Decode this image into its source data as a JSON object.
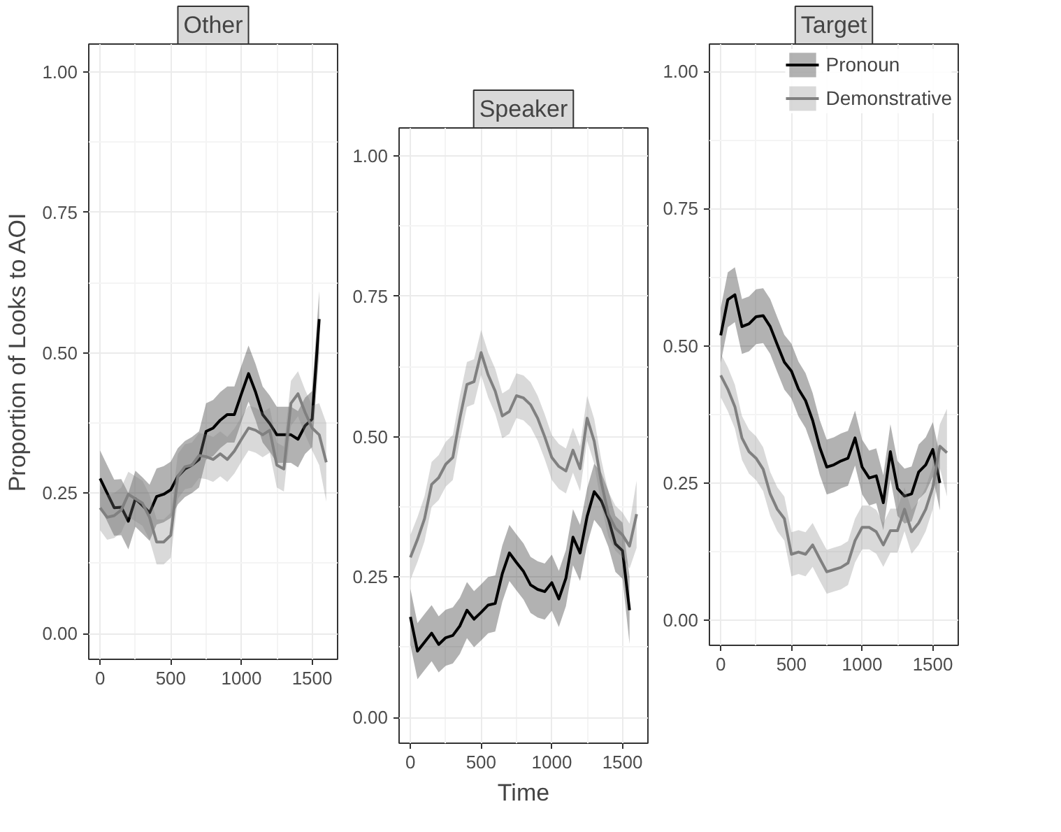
{
  "chart_data": [
    {
      "type": "line",
      "title": "Other",
      "ylabel": "Proportion of Looks to AOI",
      "xlim": [
        -80,
        1680
      ],
      "ylim": [
        -0.046,
        1.05
      ],
      "xticks": [
        0,
        500,
        1000,
        1500
      ],
      "yticks": [
        {
          "value": 0,
          "label": "0.00"
        },
        {
          "value": 0.25,
          "label": "0.25"
        },
        {
          "value": 0.5,
          "label": "0.50"
        },
        {
          "value": 0.75,
          "label": "0.75"
        },
        {
          "value": 1,
          "label": "1.00"
        }
      ],
      "grid": true,
      "series": [
        {
          "color": "#000000",
          "x": [
            0,
            50,
            100,
            150,
            200,
            250,
            300,
            350,
            400,
            450,
            500,
            550,
            600,
            650,
            700,
            750,
            800,
            850,
            900,
            950,
            1000,
            1050,
            1100,
            1150,
            1200,
            1250,
            1300,
            1350,
            1400,
            1450,
            1500,
            1550
          ],
          "values": [
            0.276,
            0.25,
            0.224,
            0.225,
            0.2,
            0.24,
            0.228,
            0.215,
            0.244,
            0.248,
            0.256,
            0.28,
            0.293,
            0.3,
            0.31,
            0.36,
            0.366,
            0.38,
            0.39,
            0.39,
            0.427,
            0.463,
            0.43,
            0.39,
            0.374,
            0.354,
            0.354,
            0.354,
            0.346,
            0.37,
            0.382,
            0.56
          ],
          "lower": [
            0.226,
            0.2,
            0.174,
            0.175,
            0.15,
            0.19,
            0.178,
            0.165,
            0.194,
            0.198,
            0.206,
            0.23,
            0.243,
            0.25,
            0.26,
            0.31,
            0.316,
            0.33,
            0.34,
            0.34,
            0.377,
            0.413,
            0.38,
            0.34,
            0.324,
            0.304,
            0.304,
            0.304,
            0.296,
            0.32,
            0.332,
            0.5
          ],
          "upper": [
            0.326,
            0.3,
            0.274,
            0.275,
            0.25,
            0.29,
            0.278,
            0.265,
            0.294,
            0.298,
            0.306,
            0.33,
            0.343,
            0.35,
            0.36,
            0.41,
            0.416,
            0.43,
            0.44,
            0.44,
            0.477,
            0.513,
            0.48,
            0.44,
            0.424,
            0.404,
            0.404,
            0.404,
            0.396,
            0.42,
            0.432,
            0.61
          ]
        },
        {
          "color": "#808080",
          "x": [
            0,
            50,
            100,
            150,
            200,
            250,
            300,
            350,
            400,
            450,
            500,
            550,
            600,
            650,
            700,
            750,
            800,
            850,
            900,
            950,
            1000,
            1050,
            1100,
            1150,
            1200,
            1250,
            1300,
            1350,
            1400,
            1450,
            1500,
            1550,
            1600
          ],
          "values": [
            0.224,
            0.207,
            0.21,
            0.22,
            0.248,
            0.24,
            0.232,
            0.207,
            0.163,
            0.163,
            0.175,
            0.28,
            0.297,
            0.3,
            0.317,
            0.315,
            0.31,
            0.32,
            0.31,
            0.325,
            0.346,
            0.366,
            0.362,
            0.354,
            0.362,
            0.3,
            0.293,
            0.41,
            0.427,
            0.394,
            0.366,
            0.354,
            0.305
          ],
          "lower": [
            0.184,
            0.167,
            0.17,
            0.18,
            0.208,
            0.2,
            0.192,
            0.167,
            0.123,
            0.123,
            0.135,
            0.24,
            0.257,
            0.26,
            0.277,
            0.275,
            0.27,
            0.28,
            0.27,
            0.285,
            0.306,
            0.326,
            0.322,
            0.314,
            0.322,
            0.26,
            0.253,
            0.37,
            0.387,
            0.354,
            0.326,
            0.3,
            0.235
          ],
          "upper": [
            0.264,
            0.247,
            0.25,
            0.26,
            0.288,
            0.28,
            0.272,
            0.247,
            0.203,
            0.203,
            0.215,
            0.32,
            0.337,
            0.34,
            0.357,
            0.355,
            0.35,
            0.36,
            0.35,
            0.365,
            0.386,
            0.406,
            0.402,
            0.394,
            0.402,
            0.34,
            0.333,
            0.45,
            0.467,
            0.434,
            0.406,
            0.41,
            0.375
          ]
        }
      ]
    },
    {
      "type": "line",
      "title": "Speaker",
      "xlabel": "Time",
      "xlim": [
        -80,
        1680
      ],
      "ylim": [
        -0.046,
        1.05
      ],
      "xticks": [
        0,
        500,
        1000,
        1500
      ],
      "yticks": [
        {
          "value": 0,
          "label": "0.00"
        },
        {
          "value": 0.25,
          "label": "0.25"
        },
        {
          "value": 0.5,
          "label": "0.50"
        },
        {
          "value": 0.75,
          "label": "0.75"
        },
        {
          "value": 1,
          "label": "1.00"
        }
      ],
      "grid": true,
      "series": [
        {
          "color": "#000000",
          "x": [
            0,
            50,
            100,
            150,
            200,
            250,
            300,
            350,
            400,
            450,
            500,
            550,
            600,
            650,
            700,
            750,
            800,
            850,
            900,
            950,
            1000,
            1050,
            1100,
            1150,
            1200,
            1250,
            1300,
            1350,
            1400,
            1450,
            1500,
            1550
          ],
          "values": [
            0.179,
            0.118,
            0.134,
            0.15,
            0.13,
            0.142,
            0.146,
            0.163,
            0.191,
            0.175,
            0.187,
            0.2,
            0.203,
            0.256,
            0.293,
            0.276,
            0.26,
            0.236,
            0.228,
            0.224,
            0.24,
            0.211,
            0.248,
            0.321,
            0.293,
            0.358,
            0.402,
            0.386,
            0.354,
            0.309,
            0.297,
            0.191
          ],
          "lower": [
            0.129,
            0.068,
            0.084,
            0.1,
            0.08,
            0.092,
            0.096,
            0.113,
            0.141,
            0.125,
            0.137,
            0.15,
            0.153,
            0.206,
            0.243,
            0.226,
            0.21,
            0.186,
            0.178,
            0.174,
            0.19,
            0.161,
            0.198,
            0.271,
            0.243,
            0.308,
            0.352,
            0.336,
            0.304,
            0.259,
            0.247,
            0.131
          ],
          "upper": [
            0.229,
            0.168,
            0.184,
            0.2,
            0.18,
            0.192,
            0.196,
            0.213,
            0.241,
            0.225,
            0.237,
            0.25,
            0.253,
            0.306,
            0.343,
            0.326,
            0.31,
            0.286,
            0.278,
            0.274,
            0.29,
            0.261,
            0.298,
            0.371,
            0.343,
            0.408,
            0.452,
            0.436,
            0.404,
            0.359,
            0.347,
            0.251
          ]
        },
        {
          "color": "#808080",
          "x": [
            0,
            50,
            100,
            150,
            200,
            250,
            300,
            350,
            400,
            450,
            500,
            550,
            600,
            650,
            700,
            750,
            800,
            850,
            900,
            950,
            1000,
            1050,
            1100,
            1150,
            1200,
            1250,
            1300,
            1350,
            1400,
            1450,
            1500,
            1550,
            1600
          ],
          "values": [
            0.285,
            0.317,
            0.354,
            0.415,
            0.427,
            0.451,
            0.463,
            0.533,
            0.593,
            0.598,
            0.65,
            0.61,
            0.581,
            0.537,
            0.545,
            0.573,
            0.569,
            0.557,
            0.533,
            0.5,
            0.463,
            0.447,
            0.439,
            0.476,
            0.443,
            0.533,
            0.492,
            0.419,
            0.362,
            0.337,
            0.325,
            0.305,
            0.362
          ],
          "lower": [
            0.245,
            0.277,
            0.314,
            0.375,
            0.387,
            0.411,
            0.423,
            0.493,
            0.553,
            0.558,
            0.61,
            0.57,
            0.541,
            0.497,
            0.505,
            0.533,
            0.529,
            0.517,
            0.493,
            0.46,
            0.423,
            0.407,
            0.399,
            0.436,
            0.403,
            0.493,
            0.452,
            0.379,
            0.322,
            0.297,
            0.285,
            0.265,
            0.302
          ],
          "upper": [
            0.325,
            0.357,
            0.394,
            0.455,
            0.467,
            0.491,
            0.503,
            0.573,
            0.633,
            0.638,
            0.69,
            0.65,
            0.621,
            0.577,
            0.585,
            0.613,
            0.609,
            0.597,
            0.573,
            0.54,
            0.503,
            0.487,
            0.479,
            0.516,
            0.483,
            0.573,
            0.532,
            0.459,
            0.402,
            0.377,
            0.365,
            0.345,
            0.422
          ]
        }
      ]
    },
    {
      "type": "line",
      "title": "Target",
      "xlim": [
        -80,
        1680
      ],
      "ylim": [
        -0.046,
        1.05
      ],
      "xticks": [
        0,
        500,
        1000,
        1500
      ],
      "yticks": [
        {
          "value": 0,
          "label": "0.00"
        },
        {
          "value": 0.25,
          "label": "0.25"
        },
        {
          "value": 0.5,
          "label": "0.50"
        },
        {
          "value": 0.75,
          "label": "0.75"
        },
        {
          "value": 1,
          "label": "1.00"
        }
      ],
      "grid": true,
      "legend": "top right",
      "series": [
        {
          "name": "Pronoun",
          "color": "#000000",
          "x": [
            0,
            50,
            100,
            150,
            200,
            250,
            300,
            350,
            400,
            450,
            500,
            550,
            600,
            650,
            700,
            750,
            800,
            850,
            900,
            950,
            1000,
            1050,
            1100,
            1150,
            1200,
            1250,
            1300,
            1350,
            1400,
            1450,
            1500,
            1550
          ],
          "values": [
            0.519,
            0.584,
            0.593,
            0.535,
            0.54,
            0.553,
            0.555,
            0.535,
            0.502,
            0.47,
            0.454,
            0.421,
            0.4,
            0.364,
            0.315,
            0.279,
            0.283,
            0.29,
            0.295,
            0.332,
            0.279,
            0.259,
            0.263,
            0.214,
            0.307,
            0.24,
            0.226,
            0.23,
            0.27,
            0.283,
            0.311,
            0.25
          ],
          "lower": [
            0.469,
            0.534,
            0.543,
            0.485,
            0.49,
            0.503,
            0.505,
            0.485,
            0.452,
            0.42,
            0.404,
            0.371,
            0.35,
            0.314,
            0.265,
            0.229,
            0.233,
            0.24,
            0.245,
            0.282,
            0.229,
            0.209,
            0.213,
            0.164,
            0.257,
            0.19,
            0.176,
            0.18,
            0.22,
            0.233,
            0.261,
            0.2
          ],
          "upper": [
            0.569,
            0.634,
            0.643,
            0.585,
            0.59,
            0.603,
            0.605,
            0.585,
            0.552,
            0.52,
            0.504,
            0.471,
            0.45,
            0.414,
            0.365,
            0.329,
            0.333,
            0.34,
            0.345,
            0.382,
            0.329,
            0.309,
            0.313,
            0.264,
            0.357,
            0.29,
            0.276,
            0.28,
            0.32,
            0.333,
            0.361,
            0.3
          ]
        },
        {
          "name": "Demonstrative",
          "color": "#808080",
          "x": [
            0,
            50,
            100,
            150,
            200,
            250,
            300,
            350,
            400,
            450,
            500,
            550,
            600,
            650,
            700,
            750,
            800,
            850,
            900,
            950,
            1000,
            1050,
            1100,
            1150,
            1200,
            1250,
            1300,
            1350,
            1400,
            1450,
            1500,
            1550,
            1600
          ],
          "values": [
            0.446,
            0.421,
            0.389,
            0.332,
            0.307,
            0.295,
            0.275,
            0.23,
            0.202,
            0.185,
            0.12,
            0.124,
            0.12,
            0.137,
            0.112,
            0.088,
            0.092,
            0.096,
            0.104,
            0.145,
            0.169,
            0.169,
            0.161,
            0.137,
            0.163,
            0.163,
            0.202,
            0.161,
            0.177,
            0.202,
            0.242,
            0.317,
            0.305
          ],
          "lower": [
            0.406,
            0.381,
            0.349,
            0.292,
            0.267,
            0.255,
            0.235,
            0.19,
            0.162,
            0.145,
            0.08,
            0.084,
            0.08,
            0.097,
            0.072,
            0.048,
            0.052,
            0.056,
            0.064,
            0.105,
            0.129,
            0.129,
            0.121,
            0.097,
            0.123,
            0.123,
            0.162,
            0.121,
            0.137,
            0.162,
            0.202,
            0.277,
            0.225
          ],
          "upper": [
            0.486,
            0.461,
            0.429,
            0.372,
            0.347,
            0.335,
            0.315,
            0.27,
            0.242,
            0.225,
            0.16,
            0.164,
            0.16,
            0.177,
            0.152,
            0.128,
            0.132,
            0.136,
            0.144,
            0.185,
            0.209,
            0.209,
            0.201,
            0.177,
            0.203,
            0.203,
            0.242,
            0.201,
            0.217,
            0.242,
            0.282,
            0.357,
            0.385
          ]
        }
      ]
    }
  ]
}
